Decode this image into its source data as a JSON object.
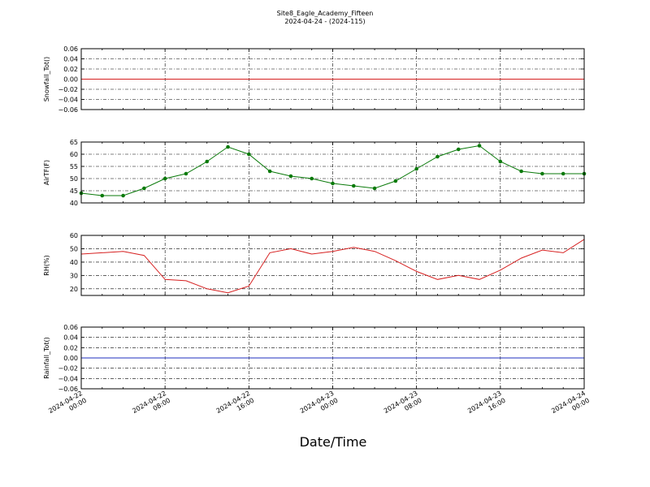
{
  "title": "Site8_Eagle_Academy_Fifteen",
  "subtitle": "2024-04-24 - (2024-115)",
  "xlabel": "Date/Time",
  "x_tick_labels": [
    [
      "2024-04-22",
      "00:00"
    ],
    [
      "2024-04-22",
      "08:00"
    ],
    [
      "2024-04-22",
      "16:00"
    ],
    [
      "2024-04-23",
      "00:00"
    ],
    [
      "2024-04-23",
      "08:00"
    ],
    [
      "2024-04-23",
      "16:00"
    ],
    [
      "2024-04-24",
      "00:00"
    ]
  ],
  "chart_data": [
    {
      "type": "line",
      "ylabel": "Snowfall_Tot()",
      "ylim": [
        -0.06,
        0.06
      ],
      "yticks": [
        -0.06,
        -0.04,
        -0.02,
        0.0,
        0.02,
        0.04,
        0.06
      ],
      "ytick_labels": [
        "−0.06",
        "−0.04",
        "−0.02",
        "0.00",
        "0.02",
        "0.04",
        "0.06"
      ],
      "xlim": [
        "2024-04-22 00:00",
        "2024-04-24 00:00"
      ],
      "grid": true,
      "color": "#d62020",
      "marker": "none",
      "series": [
        {
          "x": [
            "2024-04-22 00:00",
            "2024-04-24 00:00"
          ],
          "values": [
            0.0,
            0.0
          ]
        }
      ]
    },
    {
      "type": "line",
      "ylabel": "AirTF(F)",
      "ylim": [
        40,
        65
      ],
      "yticks": [
        40,
        45,
        50,
        55,
        60,
        65
      ],
      "ytick_labels": [
        "40",
        "45",
        "50",
        "55",
        "60",
        "65"
      ],
      "xlim": [
        "2024-04-22 00:00",
        "2024-04-24 00:00"
      ],
      "grid": true,
      "color": "#0a7a0a",
      "marker": "circle",
      "series": [
        {
          "x": [
            "2024-04-22 00:00",
            "2024-04-22 02:00",
            "2024-04-22 04:00",
            "2024-04-22 06:00",
            "2024-04-22 08:00",
            "2024-04-22 10:00",
            "2024-04-22 12:00",
            "2024-04-22 14:00",
            "2024-04-22 16:00",
            "2024-04-22 18:00",
            "2024-04-22 20:00",
            "2024-04-22 22:00",
            "2024-04-23 00:00",
            "2024-04-23 02:00",
            "2024-04-23 04:00",
            "2024-04-23 06:00",
            "2024-04-23 08:00",
            "2024-04-23 10:00",
            "2024-04-23 12:00",
            "2024-04-23 14:00",
            "2024-04-23 16:00",
            "2024-04-23 18:00",
            "2024-04-23 20:00",
            "2024-04-23 22:00",
            "2024-04-24 00:00"
          ],
          "values": [
            44.0,
            43.0,
            43.0,
            46.0,
            50.0,
            52.0,
            57.0,
            63.0,
            60.0,
            53.0,
            51.0,
            50.0,
            48.0,
            47.0,
            46.0,
            49.0,
            54.0,
            59.0,
            62.0,
            63.5,
            57.0,
            53.0,
            52.0,
            52.0,
            52.0
          ]
        }
      ]
    },
    {
      "type": "line",
      "ylabel": "RH(%)",
      "ylim": [
        15,
        60
      ],
      "yticks": [
        20,
        30,
        40,
        50,
        60
      ],
      "ytick_labels": [
        "20",
        "30",
        "40",
        "50",
        "60"
      ],
      "xlim": [
        "2024-04-22 00:00",
        "2024-04-24 00:00"
      ],
      "grid": true,
      "color": "#d62020",
      "marker": "none",
      "series": [
        {
          "x": [
            "2024-04-22 00:00",
            "2024-04-22 02:00",
            "2024-04-22 04:00",
            "2024-04-22 06:00",
            "2024-04-22 08:00",
            "2024-04-22 10:00",
            "2024-04-22 12:00",
            "2024-04-22 14:00",
            "2024-04-22 16:00",
            "2024-04-22 18:00",
            "2024-04-22 20:00",
            "2024-04-22 22:00",
            "2024-04-23 00:00",
            "2024-04-23 02:00",
            "2024-04-23 04:00",
            "2024-04-23 06:00",
            "2024-04-23 08:00",
            "2024-04-23 10:00",
            "2024-04-23 12:00",
            "2024-04-23 14:00",
            "2024-04-23 16:00",
            "2024-04-23 18:00",
            "2024-04-23 20:00",
            "2024-04-23 22:00",
            "2024-04-24 00:00"
          ],
          "values": [
            46,
            47,
            48,
            45,
            27,
            26,
            20,
            17,
            22,
            47,
            50,
            46,
            48,
            51,
            48,
            41,
            33,
            27,
            30,
            27,
            34,
            43,
            49,
            47,
            57
          ]
        }
      ]
    },
    {
      "type": "line",
      "ylabel": "Rainfall_Tot()",
      "ylim": [
        -0.06,
        0.06
      ],
      "yticks": [
        -0.06,
        -0.04,
        -0.02,
        0.0,
        0.02,
        0.04,
        0.06
      ],
      "ytick_labels": [
        "−0.06",
        "−0.04",
        "−0.02",
        "0.00",
        "0.02",
        "0.04",
        "0.06"
      ],
      "xlim": [
        "2024-04-22 00:00",
        "2024-04-24 00:00"
      ],
      "grid": true,
      "color": "#1f2fbf",
      "marker": "none",
      "series": [
        {
          "x": [
            "2024-04-22 00:00",
            "2024-04-24 00:00"
          ],
          "values": [
            0.0,
            0.0
          ]
        }
      ]
    }
  ]
}
